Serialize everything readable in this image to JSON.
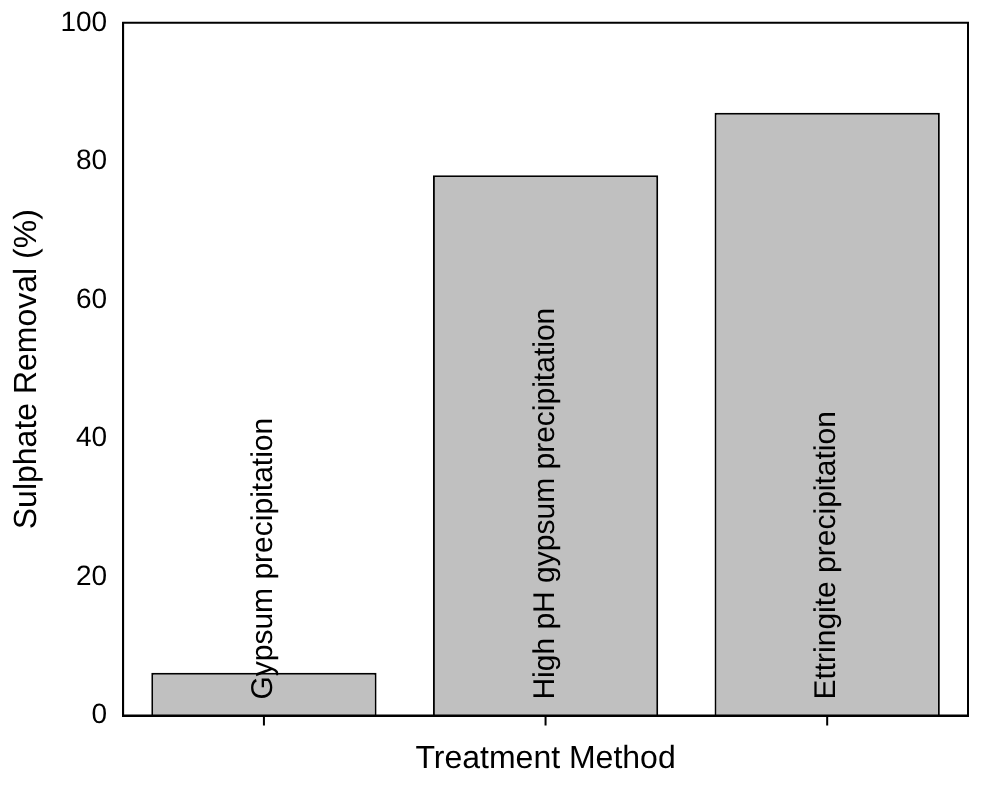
{
  "chart_data": {
    "type": "bar",
    "xlabel": "Treatment Method",
    "ylabel": "Sulphate Removal (%)",
    "categories": [
      "Gypsum precipitation",
      "High pH gypsum precipitation",
      "Ettringite precipitation"
    ],
    "values": [
      6.2,
      78,
      87
    ],
    "color": "#c0c0c0",
    "ylim": [
      0,
      100
    ],
    "yticks": [
      0,
      20,
      40,
      60,
      80,
      100
    ],
    "grid": false
  }
}
